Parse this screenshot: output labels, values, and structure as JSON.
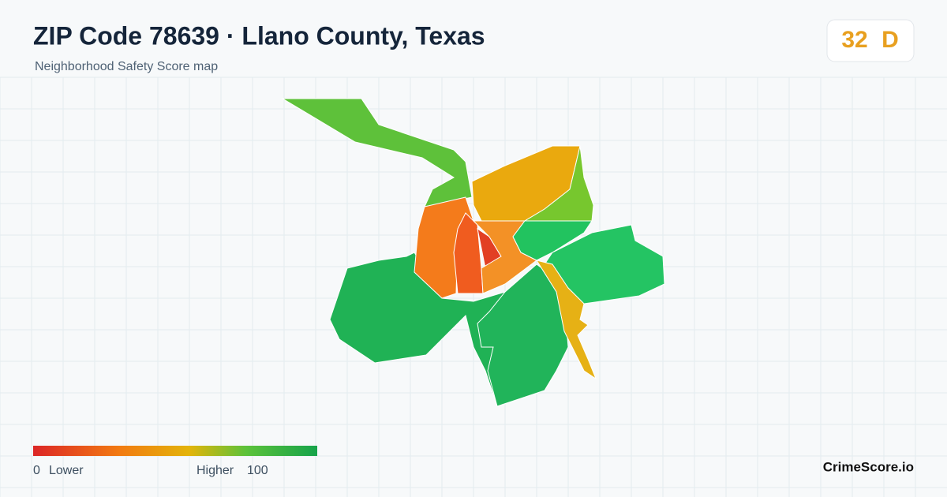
{
  "header": {
    "title": "ZIP Code 78639 · Llano County, Texas",
    "subtitle": "Neighborhood Safety Score map"
  },
  "score": {
    "value": 32,
    "grade": "D"
  },
  "legend": {
    "min": 0,
    "min_label": "Lower",
    "max_label": "Higher",
    "max": 100
  },
  "brand": "CrimeScore.io"
}
